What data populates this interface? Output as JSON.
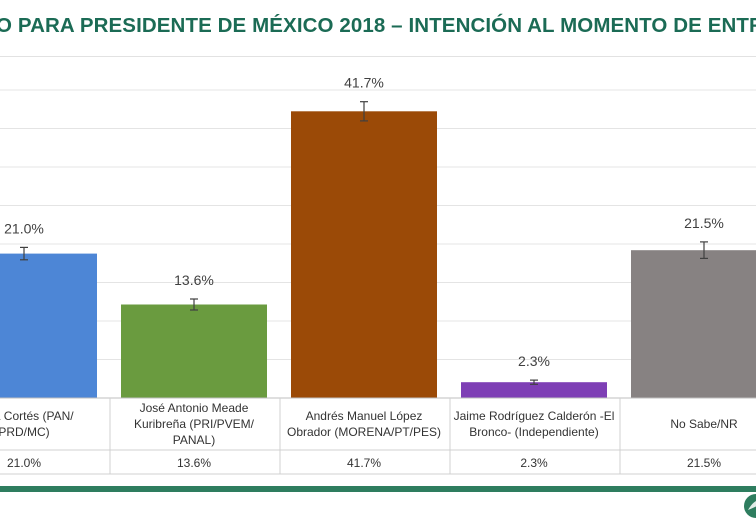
{
  "page": {
    "title": "O PARA PRESIDENTE DE MÉXICO 2018 – INTENCIÓN AL MOMENTO DE ENTR"
  },
  "colors": {
    "title": "#1b6b55",
    "band": "#2e7d5f"
  },
  "icons": {
    "logo": "leaf-logo-icon"
  },
  "chart_data": {
    "type": "bar",
    "categories": [
      [
        "naya Cortés (PAN/",
        "PRD/MC)"
      ],
      [
        "José Antonio Meade",
        "Kuribreña (PRI/PVEM/",
        "PANAL)"
      ],
      [
        "Andrés Manuel López",
        "Obrador (MORENA/PT/PES)"
      ],
      [
        "Jaime Rodríguez Calderón -El",
        "Bronco- (Independiente)"
      ],
      [
        "No Sabe/NR"
      ]
    ],
    "values": [
      21.0,
      13.6,
      41.7,
      2.3,
      21.5
    ],
    "labels": [
      "21.0%",
      "13.6%",
      "41.7%",
      "2.3%",
      "21.5%"
    ],
    "table_values": [
      "21.0%",
      "13.6%",
      "41.7%",
      "2.3%",
      "21.5%"
    ],
    "error_bars": [
      0.9,
      0.8,
      1.4,
      0.3,
      1.2
    ],
    "colors": [
      "#4d86d6",
      "#6a9b3f",
      "#9b4a07",
      "#7e3fb5",
      "#878282"
    ],
    "ylim": [
      0,
      48
    ],
    "grid": true,
    "data_table": true
  }
}
